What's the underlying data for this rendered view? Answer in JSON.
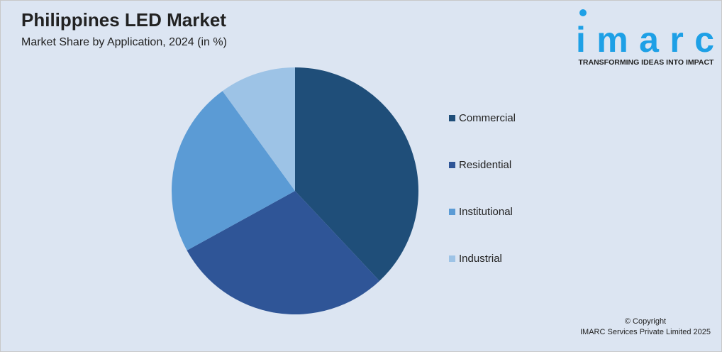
{
  "chart_data": {
    "type": "pie",
    "title": "Philippines LED Market",
    "subtitle": "Market Share by Application, 2024 (in %)",
    "categories": [
      "Commercial",
      "Residential",
      "Institutional",
      "Industrial"
    ],
    "values": [
      38,
      29,
      23,
      10
    ],
    "colors": [
      "#1f4e79",
      "#2f5597",
      "#5b9bd5",
      "#9dc3e6"
    ],
    "legend": "right"
  },
  "branding": {
    "logo": "imarc",
    "tagline": "TRANSFORMING IDEAS INTO IMPACT",
    "copyright": [
      "© Copyright",
      "IMARC Services Private Limited 2025"
    ]
  }
}
